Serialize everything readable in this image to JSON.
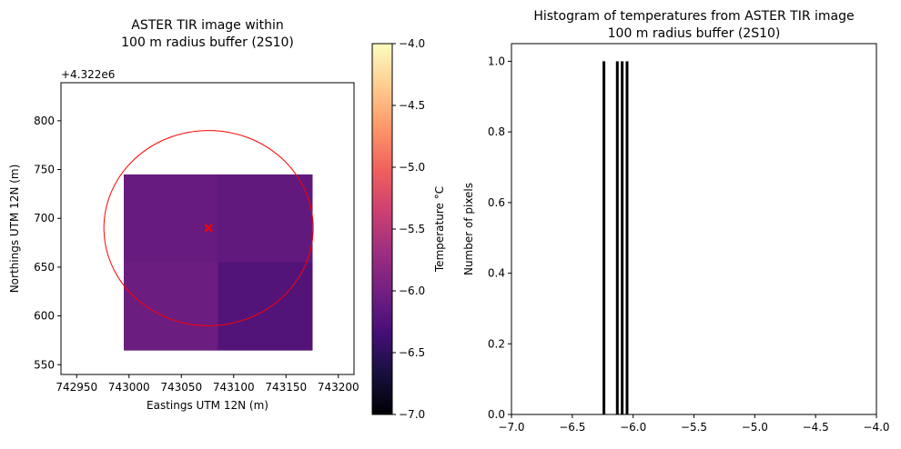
{
  "chart_data": [
    {
      "type": "heatmap",
      "title": "ASTER TIR image within\n100 m radius buffer (2S10)",
      "title_lines": [
        "ASTER TIR image within",
        "100 m radius buffer (2S10)"
      ],
      "xlabel": "Eastings UTM 12N (m)",
      "ylabel": "Northings UTM 12N (m)",
      "y_offset_label": "+4.322e6",
      "xlim": [
        742935,
        743215
      ],
      "ylim": [
        540,
        839
      ],
      "xticks": [
        742950,
        743000,
        743050,
        743100,
        743150,
        743200
      ],
      "yticks": [
        550,
        600,
        650,
        700,
        750,
        800
      ],
      "cells": [
        {
          "x0": 742995,
          "x1": 743085,
          "y0": 655,
          "y1": 745,
          "value": -6.09
        },
        {
          "x0": 743085,
          "x1": 743175,
          "y0": 655,
          "y1": 745,
          "value": -6.13
        },
        {
          "x0": 742995,
          "x1": 743085,
          "y0": 565,
          "y1": 655,
          "value": -6.05
        },
        {
          "x0": 743085,
          "x1": 743175,
          "y0": 565,
          "y1": 655,
          "value": -6.24
        }
      ],
      "buffer_circle": {
        "center": [
          743076,
          690
        ],
        "radius": 100,
        "color": "#ff0000"
      },
      "marker": {
        "x": 743076,
        "y": 690,
        "symbol": "x",
        "color": "#ff0000"
      },
      "colorbar": {
        "label": "Temperature °C",
        "range": [
          -7.0,
          -4.0
        ],
        "colormap": "magma",
        "ticks": [
          -7.0,
          -6.5,
          -6.0,
          -5.5,
          -5.0,
          -4.5,
          -4.0
        ]
      }
    },
    {
      "type": "bar",
      "title_lines": [
        "Histogram of temperatures from ASTER TIR image",
        "100 m radius buffer (2S10)"
      ],
      "xlabel": "",
      "ylabel": "Number of pixels",
      "xlim": [
        -7.0,
        -4.0
      ],
      "ylim": [
        0,
        1.05
      ],
      "xticks": [
        -7.0,
        -6.5,
        -6.0,
        -5.5,
        -5.0,
        -4.5,
        -4.0
      ],
      "yticks": [
        0.0,
        0.2,
        0.4,
        0.6,
        0.8,
        1.0
      ],
      "bins": [
        {
          "x": -6.24,
          "count": 1
        },
        {
          "x": -6.13,
          "count": 1
        },
        {
          "x": -6.09,
          "count": 1
        },
        {
          "x": -6.05,
          "count": 1
        }
      ],
      "bar_color": "#000000"
    }
  ]
}
